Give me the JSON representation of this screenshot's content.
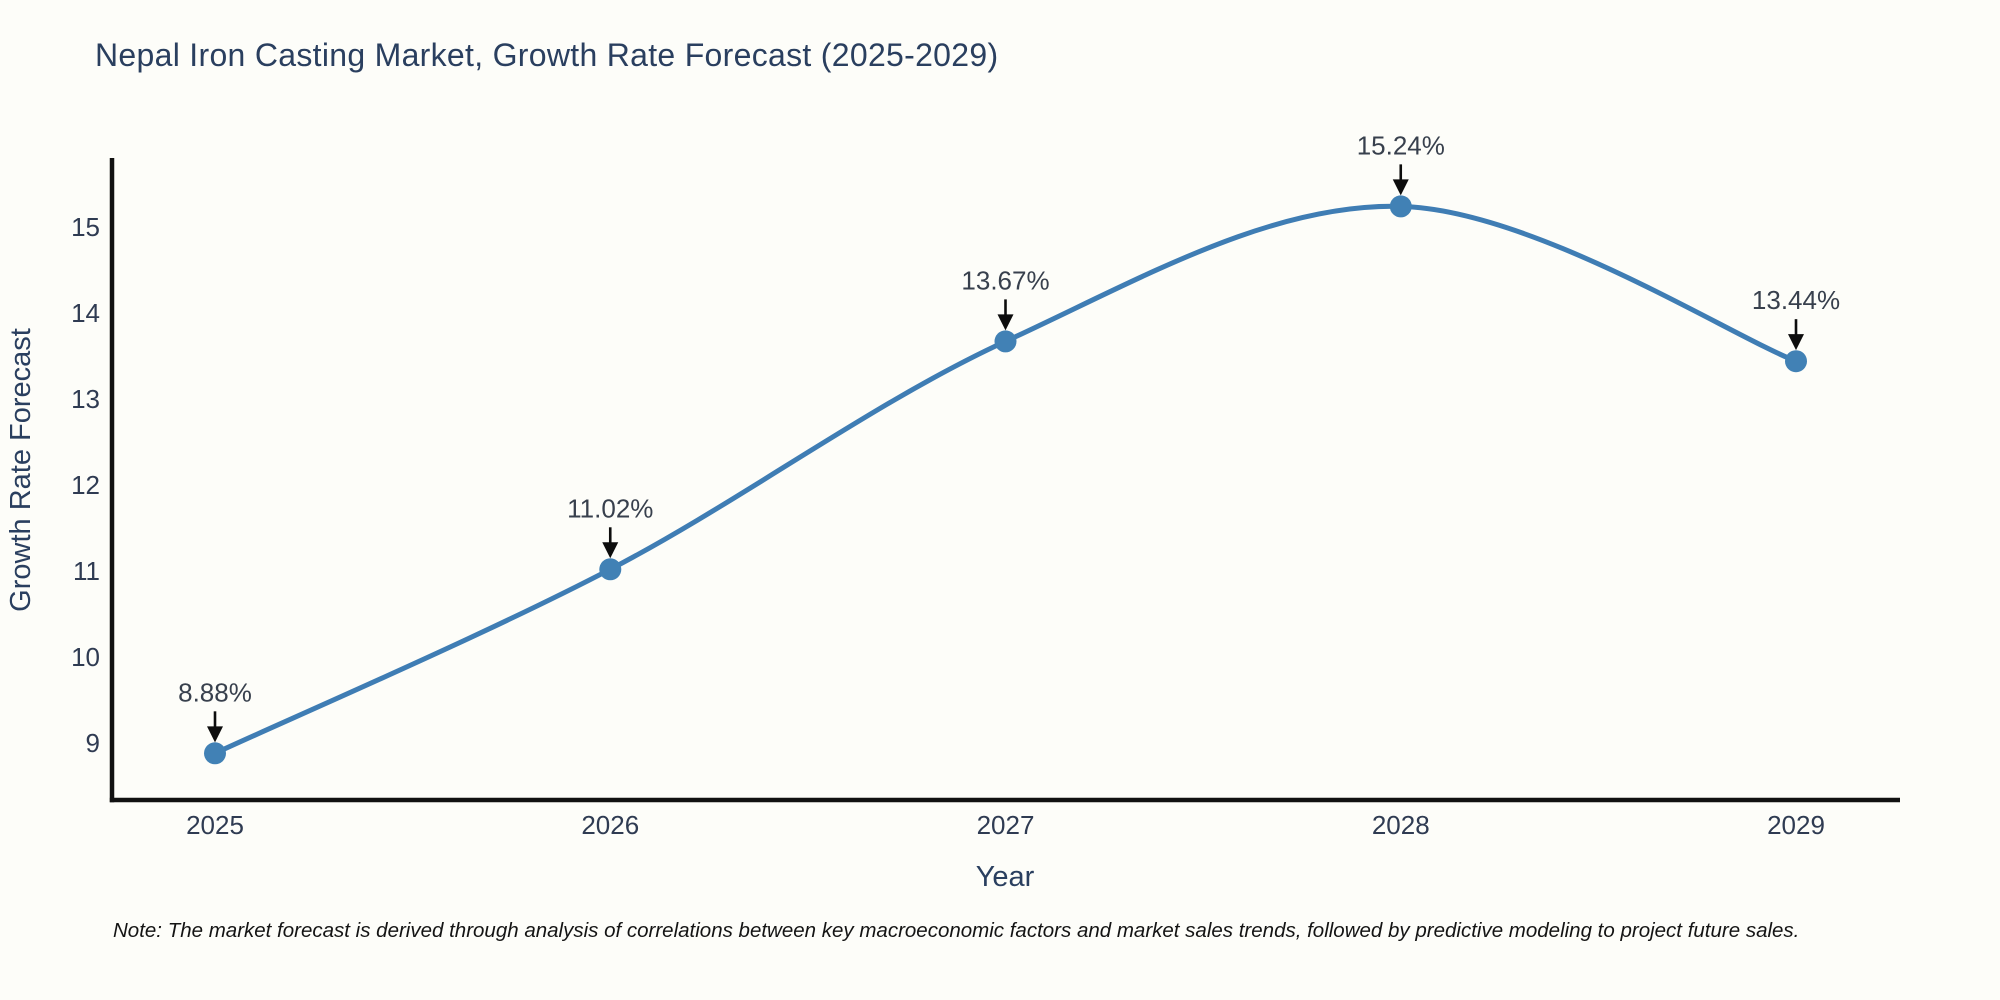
{
  "page": {
    "background": "#fdfdf9"
  },
  "note": "Note: The market forecast is derived through analysis of correlations between key macroeconomic factors and market sales trends, followed by predictive modeling to project future sales.",
  "chart_data": {
    "type": "line",
    "title": "Nepal Iron Casting Market, Growth Rate Forecast (2025-2029)",
    "xlabel": "Year",
    "ylabel": "Growth Rate Forecast",
    "x": [
      "2025",
      "2026",
      "2027",
      "2028",
      "2029"
    ],
    "series": [
      {
        "name": "Growth Rate Forecast",
        "values": [
          8.88,
          11.02,
          13.67,
          15.24,
          13.44
        ]
      }
    ],
    "point_labels": [
      "8.88%",
      "11.02%",
      "13.67%",
      "15.24%",
      "13.44%"
    ],
    "y_ticks": [
      9,
      10,
      11,
      12,
      13,
      14,
      15
    ],
    "ylim": [
      8.35,
      15.95
    ],
    "line_shape": "spline",
    "grid": false,
    "legend": "none",
    "colors": {
      "line": "#3f7db4",
      "marker": "#4181b5",
      "annotation_arrow": "#0d0d0d",
      "axis_line": "#111111",
      "title_text": "#2a3f5f",
      "tick_text": "#2f3b52",
      "note_text": "#141414",
      "background": "#fdfdf9"
    }
  }
}
